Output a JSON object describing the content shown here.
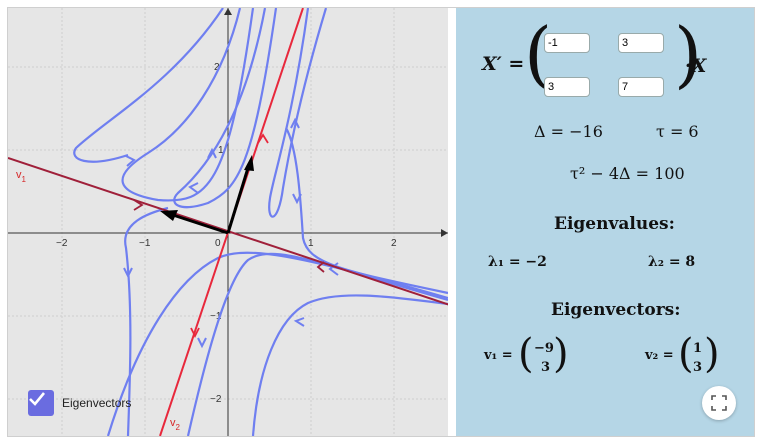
{
  "graph": {
    "x_ticks": [
      "−2",
      "−1",
      "0",
      "1",
      "2"
    ],
    "y_ticks": [
      "2",
      "1",
      "−1",
      "−2"
    ],
    "v1_label": "v",
    "v1_sub": "1",
    "v2_label": "v",
    "v2_sub": "2",
    "colors": {
      "trajectory": "#6f7ff0",
      "eigen_line": "#e8283c",
      "v1_line": "#a0203a",
      "vector": "#000000"
    },
    "checkbox": {
      "label": "Eigenvectors",
      "checked": true
    }
  },
  "panel": {
    "matrix_lhs": "X′ =",
    "matrix_rhs": "·X",
    "matrix": {
      "a11": "-1",
      "a12": "3",
      "a21": "3",
      "a22": "7"
    },
    "delta": "Δ = −16",
    "tau": "τ = 6",
    "discriminant": "τ² − 4Δ = 100",
    "eigenvalues_title": "Eigenvalues:",
    "lambda1": "λ₁ = −2",
    "lambda2": "λ₂ = 8",
    "eigenvectors_title": "Eigenvectors:",
    "v1_prefix": "v₁ =",
    "v1_top": "−9",
    "v1_bottom": "3",
    "v2_prefix": "v₂ =",
    "v2_top": "1",
    "v2_bottom": "3"
  }
}
